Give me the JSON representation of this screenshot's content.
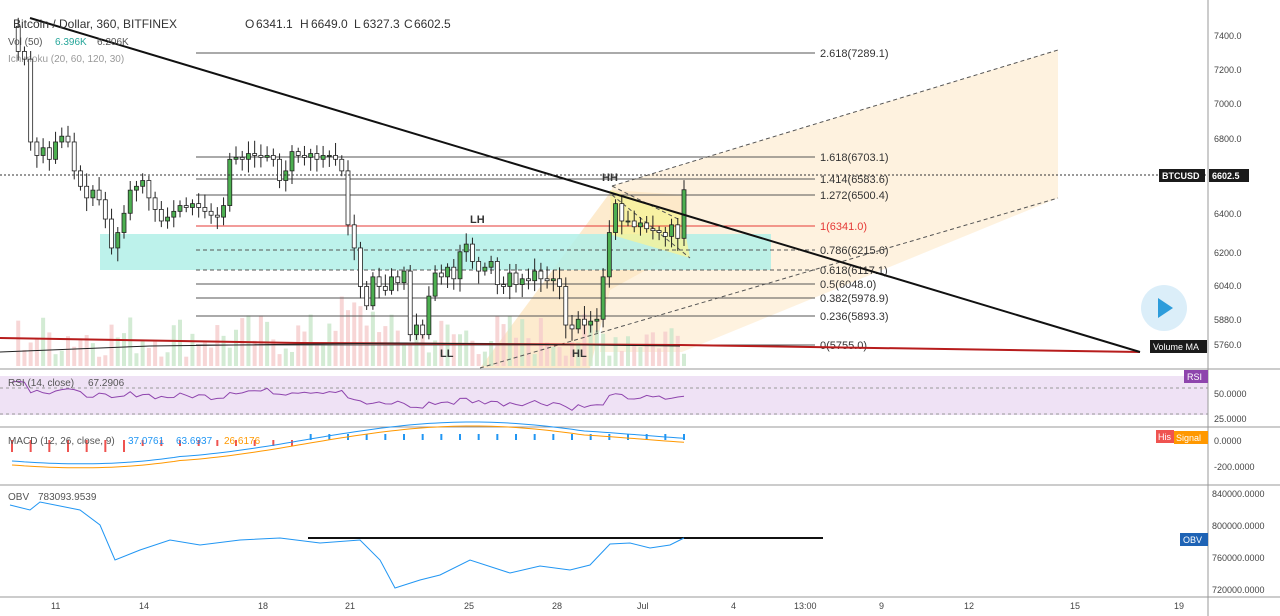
{
  "header": {
    "symbol_title": "Bitcoin / Dollar, 360, BITFINEX",
    "o_prefix": "O",
    "o_val": "6341.1",
    "h_prefix": "H",
    "h_val": "6649.0",
    "l_prefix": "L",
    "l_val": "6327.3",
    "c_prefix": "C",
    "c_val": "6602.5",
    "vol_label": "Vol (50)",
    "vol_val1": "6.396K",
    "vol_val2": "6.206K",
    "ichimoku_label": "Ichimoku (20, 60, 120, 30)"
  },
  "badges": {
    "price_tag_symbol": "BTCUSD",
    "price_tag_value": "6602.5",
    "volume_ma": "Volume MA",
    "rsi": "RSI",
    "hist": "His",
    "signal": "Signal",
    "obv": "OBV"
  },
  "fib_levels": [
    {
      "ratio": "2.618",
      "price": "7289.1",
      "value": 7289.1
    },
    {
      "ratio": "1.618",
      "price": "6703.1",
      "value": 6703.1
    },
    {
      "ratio": "1.414",
      "price": "6583.6",
      "value": 6583.6
    },
    {
      "ratio": "1.272",
      "price": "6500.4",
      "value": 6500.4
    },
    {
      "ratio": "1",
      "price": "6341.0",
      "value": 6341.0
    },
    {
      "ratio": "0.786",
      "price": "6215.6",
      "value": 6215.6
    },
    {
      "ratio": "0.618",
      "price": "6117.1",
      "value": 6117.1
    },
    {
      "ratio": "0.5",
      "price": "6048.0",
      "value": 6048.0
    },
    {
      "ratio": "0.382",
      "price": "5978.9",
      "value": 5978.9
    },
    {
      "ratio": "0.236",
      "price": "5893.3",
      "value": 5893.3
    },
    {
      "ratio": "0",
      "price": "5755.0",
      "value": 5755.0
    }
  ],
  "swing_labels": [
    "HH",
    "LH",
    "LL",
    "HL"
  ],
  "price_axis": [
    "7400.0",
    "7200.0",
    "7000.0",
    "6800.0",
    "6600.0",
    "6400.0",
    "6200.0",
    "6040.0",
    "5880.0",
    "5760.0"
  ],
  "rsi": {
    "title": "RSI (14, close)",
    "value": "67.2906",
    "ticks": [
      "50.0000",
      "25.0000"
    ]
  },
  "macd": {
    "title": "MACD (12, 26, close, 9)",
    "v1": "37.0761",
    "v2": "63.6937",
    "v3": "26.6176",
    "ticks": [
      "0.0000",
      "-200.0000"
    ]
  },
  "obv": {
    "title": "OBV",
    "value": "783093.9539",
    "ticks": [
      "840000.0000",
      "800000.0000",
      "760000.0000",
      "720000.0000"
    ]
  },
  "time_axis": [
    "11",
    "14",
    "18",
    "21",
    "25",
    "28",
    "Jul",
    "4",
    "13:00",
    "9",
    "12",
    "15",
    "19"
  ],
  "colors": {
    "up": "#26a69a",
    "down": "#ef5350",
    "fib": "#555555",
    "fib_one": "#e53935",
    "cyan_zone": "#b2f0e8",
    "orange_zone": "#fde7c5",
    "rsi_bg": "#efe2f5",
    "rsi_line": "#8e44ad",
    "macd": "#2196f3",
    "signal": "#ff9800",
    "obv": "#2196f3",
    "tag_bg": "#1b1b1b",
    "rsi_badge": "#8e44ad",
    "hist_badge": "#ef5350",
    "signal_badge": "#ff9800",
    "obv_badge": "#1e63b5"
  },
  "chart_data": {
    "type": "line",
    "title": "Bitcoin / Dollar, 360, BITFINEX",
    "price_range": [
      5700,
      7500
    ],
    "ohlc_last": {
      "open": 6341.1,
      "high": 6649.0,
      "low": 6327.3,
      "close": 6602.5
    },
    "close_series": [
      7450,
      7320,
      7280,
      6850,
      6780,
      6820,
      6760,
      6850,
      6880,
      6850,
      6700,
      6620,
      6560,
      6600,
      6550,
      6450,
      6300,
      6380,
      6480,
      6600,
      6620,
      6650,
      6560,
      6500,
      6440,
      6460,
      6490,
      6520,
      6510,
      6530,
      6510,
      6490,
      6470,
      6460,
      6520,
      6760,
      6770,
      6760,
      6790,
      6780,
      6770,
      6780,
      6760,
      6650,
      6700,
      6800,
      6780,
      6770,
      6790,
      6760,
      6780,
      6780,
      6760,
      6700,
      6420,
      6300,
      6100,
      6000,
      6150,
      6100,
      6080,
      6150,
      6120,
      6180,
      5850,
      5900,
      5850,
      6050,
      6170,
      6150,
      6200,
      6140,
      6280,
      6320,
      6230,
      6180,
      6200,
      6230,
      6110,
      6100,
      6170,
      6110,
      6140,
      6130,
      6180,
      6140,
      6130,
      6140,
      6100,
      5900,
      5880,
      5930,
      5900,
      5920,
      5930,
      6150,
      6380,
      6530,
      6440,
      6440,
      6410,
      6430,
      6400,
      6390,
      6380,
      6360,
      6420,
      6350,
      6602
    ],
    "rsi_value": 67.2906,
    "obv_value": 783093.9539,
    "macd_values": [
      37.0761,
      63.6937,
      26.6176
    ]
  }
}
